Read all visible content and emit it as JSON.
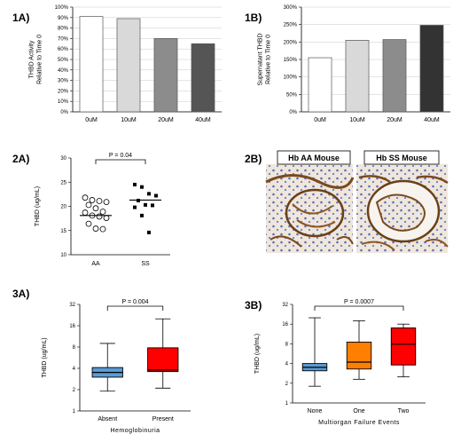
{
  "panels": [
    {
      "id": "1A",
      "label": "1A)",
      "chart_data": {
        "type": "bar",
        "categories": [
          "0uM",
          "10uM",
          "20uM",
          "40uM"
        ],
        "values": [
          91,
          89,
          70,
          65
        ],
        "colors": [
          "#ffffff",
          "#d9d9d9",
          "#8c8c8c",
          "#555555"
        ],
        "ylabel": "THBD Activity\nRelative to Time 0",
        "ylim": [
          0,
          100
        ],
        "yticks": [
          0,
          10,
          20,
          30,
          40,
          50,
          60,
          70,
          80,
          90,
          100
        ],
        "tick_suffix": "%",
        "grid": true
      }
    },
    {
      "id": "1B",
      "label": "1B)",
      "chart_data": {
        "type": "bar",
        "categories": [
          "0uM",
          "10uM",
          "20uM",
          "40uM"
        ],
        "values": [
          155,
          205,
          207,
          248
        ],
        "colors": [
          "#ffffff",
          "#d9d9d9",
          "#8c8c8c",
          "#333333"
        ],
        "ylabel": "Supernatant THBD\nRelative to Time 0",
        "ylim": [
          0,
          300
        ],
        "yticks": [
          0,
          50,
          100,
          150,
          200,
          250,
          300
        ],
        "tick_suffix": "%",
        "grid": true
      }
    },
    {
      "id": "2A",
      "label": "2A)",
      "chart_data": {
        "type": "scatter",
        "categories": [
          "AA",
          "SS"
        ],
        "series": [
          {
            "group": "AA",
            "marker": "circle",
            "values": [
              21.8,
              21.3,
              21.1,
              20.9,
              20.3,
              19.6,
              18.9,
              18.7,
              18.1,
              17.9,
              17.6,
              16.4,
              15.4,
              15.3
            ]
          },
          {
            "group": "SS",
            "marker": "square",
            "values": [
              24.5,
              24.0,
              22.6,
              22.2,
              21.2,
              20.3,
              20.2,
              19.8,
              18.1,
              14.6
            ]
          }
        ],
        "means": [
          18.1,
          21.3
        ],
        "ylabel": "THBD (ug/mL)",
        "ylim": [
          10,
          30
        ],
        "yticks": [
          10,
          15,
          20,
          25,
          30
        ],
        "annotation": "P = 0.04"
      }
    },
    {
      "id": "2B",
      "label": "2B)",
      "images": [
        "Hb AA Mouse",
        "Hb SS Mouse"
      ]
    },
    {
      "id": "3A",
      "label": "3A)",
      "chart_data": {
        "type": "box",
        "categories": [
          "Absent",
          "Present"
        ],
        "boxes": [
          {
            "min": 1.9,
            "q1": 3.0,
            "median": 3.5,
            "q3": 4.1,
            "max": 9.0,
            "color": "#5b9bd5"
          },
          {
            "min": 2.1,
            "q1": 3.6,
            "median": 3.8,
            "q3": 7.8,
            "max": 20.0,
            "color": "#ff0000"
          }
        ],
        "xlabel": "Hemoglobinuria",
        "ylabel": "THBD (ug/mL)",
        "ylim": [
          1,
          32
        ],
        "yticks": [
          1,
          2,
          4,
          8,
          16,
          32
        ],
        "scale": "log",
        "annotation": "P = 0.004"
      }
    },
    {
      "id": "3B",
      "label": "3B)",
      "chart_data": {
        "type": "box",
        "categories": [
          "None",
          "One",
          "Two"
        ],
        "boxes": [
          {
            "min": 1.8,
            "q1": 3.1,
            "median": 3.5,
            "q3": 4.0,
            "max": 20.0,
            "color": "#5b9bd5"
          },
          {
            "min": 2.3,
            "q1": 3.3,
            "median": 4.2,
            "q3": 8.5,
            "max": 18.0,
            "color": "#ff7f00"
          },
          {
            "min": 2.5,
            "q1": 3.8,
            "median": 7.9,
            "q3": 14.0,
            "max": 16.0,
            "color": "#ff0000"
          }
        ],
        "xlabel": "Multiorgan Failure Events",
        "ylabel": "THBD (ug/mL)",
        "ylim": [
          1,
          32
        ],
        "yticks": [
          1,
          2,
          4,
          8,
          16,
          32
        ],
        "scale": "log",
        "annotation": "P = 0.0007"
      }
    }
  ]
}
